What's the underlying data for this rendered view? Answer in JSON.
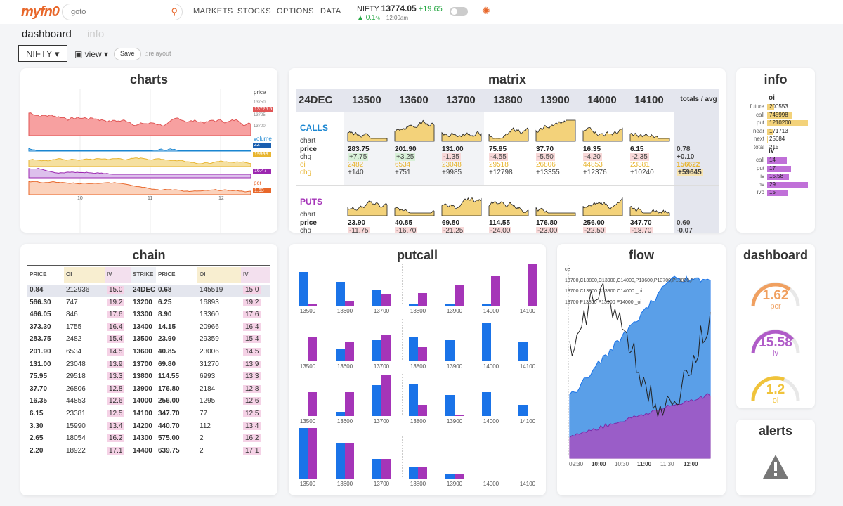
{
  "app": {
    "logo": "myfn0",
    "search_placeholder": "goto",
    "nav": [
      "MARKETS",
      "STOCKS",
      "OPTIONS",
      "DATA"
    ],
    "ticker": {
      "name": "NIFTY",
      "price": "13774.05",
      "chg": "+19.65",
      "pct": "0.1",
      "pct_unit": "%",
      "time": "12:00am"
    }
  },
  "tabs": [
    "dashboard",
    "info"
  ],
  "controls": {
    "symbol": "NIFTY",
    "view": "view",
    "save": "Save",
    "relayout": "relayout"
  },
  "colors": {
    "accent": "#e8672a",
    "calls": "#1a86d1",
    "puts": "#a535b8",
    "blue": "#1a73e8",
    "purple": "#9c27b0",
    "yellow": "#f0c33a"
  },
  "charts": {
    "title": "charts",
    "labels": {
      "price": "price",
      "volume": "volume",
      "pcr": "pcr"
    },
    "yticks": [
      "13750",
      "13726.5",
      "13725",
      "13700"
    ],
    "badges": {
      "vol": "44",
      "oi": "19998",
      "iv": "16.47",
      "pcr": "1.63"
    },
    "xticks": [
      "10",
      "11",
      "12"
    ]
  },
  "matrix": {
    "title": "matrix",
    "expiry": "24DEC",
    "strikes": [
      "13500",
      "13600",
      "13700",
      "13800",
      "13900",
      "14000",
      "14100"
    ],
    "totals": "totals / avg",
    "calls": {
      "label": "CALLS",
      "rows": [
        "chart",
        "price",
        "chg",
        "oi",
        "chg"
      ],
      "price": [
        "283.75",
        "201.90",
        "131.00",
        "75.95",
        "37.70",
        "16.35",
        "6.15"
      ],
      "chg": [
        "+7.75",
        "+3.25",
        "-1.35",
        "-4.55",
        "-5.50",
        "-4.20",
        "-2.35"
      ],
      "oi": [
        "2482",
        "6534",
        "23048",
        "29518",
        "26806",
        "44853",
        "23381"
      ],
      "oichg": [
        "+140",
        "+751",
        "+9985",
        "+12798",
        "+13355",
        "+12376",
        "+10240"
      ],
      "tot": [
        "0.78",
        "+0.10",
        "156622",
        "+59645"
      ]
    },
    "puts": {
      "label": "PUTS",
      "rows": [
        "chart",
        "price",
        "chg"
      ],
      "price": [
        "23.90",
        "40.85",
        "69.80",
        "114.55",
        "176.80",
        "256.00",
        "347.70"
      ],
      "chg": [
        "-11.75",
        "-16.70",
        "-21.25",
        "-24.00",
        "-23.00",
        "-22.50",
        "-18.70"
      ],
      "tot": [
        "0.60",
        "-0.07"
      ]
    }
  },
  "info": {
    "title": "info",
    "oi_label": "oi",
    "oi": [
      {
        "k": "future",
        "v": "200553"
      },
      {
        "k": "call",
        "v": "745998"
      },
      {
        "k": "put",
        "v": "1210200"
      },
      {
        "k": "near",
        "v": "171713"
      },
      {
        "k": "next",
        "v": "25684"
      },
      {
        "k": "total",
        "v": "215"
      }
    ],
    "iv_label": "iv",
    "iv": [
      {
        "k": "call",
        "v": "14"
      },
      {
        "k": "put",
        "v": "17"
      },
      {
        "k": "iv",
        "v": "15.58"
      },
      {
        "k": "hv",
        "v": "29"
      },
      {
        "k": "ivp",
        "v": "15"
      }
    ]
  },
  "chain": {
    "title": "chain",
    "headers": [
      "PRICE",
      "OI",
      "IV",
      "STRIKE",
      "PRICE",
      "OI",
      "IV"
    ],
    "rows": [
      [
        "0.84",
        "212936",
        "15.0",
        "24DEC",
        "0.68",
        "145519",
        "15.0"
      ],
      [
        "566.30",
        "747",
        "19.2",
        "13200",
        "6.25",
        "16893",
        "19.2"
      ],
      [
        "466.05",
        "846",
        "17.6",
        "13300",
        "8.90",
        "13360",
        "17.6"
      ],
      [
        "373.30",
        "1755",
        "16.4",
        "13400",
        "14.15",
        "20966",
        "16.4"
      ],
      [
        "283.75",
        "2482",
        "15.4",
        "13500",
        "23.90",
        "29359",
        "15.4"
      ],
      [
        "201.90",
        "6534",
        "14.5",
        "13600",
        "40.85",
        "23006",
        "14.5"
      ],
      [
        "131.00",
        "23048",
        "13.9",
        "13700",
        "69.80",
        "31270",
        "13.9"
      ],
      [
        "75.95",
        "29518",
        "13.3",
        "13800",
        "114.55",
        "6993",
        "13.3"
      ],
      [
        "37.70",
        "26806",
        "12.8",
        "13900",
        "176.80",
        "2184",
        "12.8"
      ],
      [
        "16.35",
        "44853",
        "12.6",
        "14000",
        "256.00",
        "1295",
        "12.6"
      ],
      [
        "6.15",
        "23381",
        "12.5",
        "14100",
        "347.70",
        "77",
        "12.5"
      ],
      [
        "3.30",
        "15990",
        "13.4",
        "14200",
        "440.70",
        "112",
        "13.4"
      ],
      [
        "2.65",
        "18054",
        "16.2",
        "14300",
        "575.00",
        "2",
        "16.2"
      ],
      [
        "2.20",
        "18922",
        "17.1",
        "14400",
        "639.75",
        "2",
        "17.1"
      ]
    ]
  },
  "putcall": {
    "title": "putcall",
    "strikes": [
      "13500",
      "13600",
      "13700",
      "13800",
      "13900",
      "14000",
      "14100"
    ]
  },
  "flow": {
    "title": "flow",
    "legend": [
      "ce",
      "13700,C13800,C13900,C14000,P13600,P13700,P13800,P",
      "13700 C13800 C13900 C14000 _oi",
      "13700 P13800 P13900 P14000 _oi"
    ],
    "xticks": [
      "09:30",
      "10:00",
      "10:30",
      "11:00",
      "11:30",
      "12:00"
    ]
  },
  "dash": {
    "title": "dashboard",
    "gauges": [
      {
        "value": "1.62",
        "label": "pcr",
        "color": "#f0a060"
      },
      {
        "value": "15.58",
        "label": "iv",
        "color": "#b05cc8"
      },
      {
        "value": "1.2",
        "label": "oi",
        "color": "#f0c33a"
      }
    ]
  },
  "alerts": {
    "title": "alerts"
  },
  "chart_data": [
    {
      "type": "bar",
      "title": "putcall",
      "categories": [
        "13500",
        "13600",
        "13700",
        "13800",
        "13900",
        "14000",
        "14100"
      ],
      "series": []
    },
    {
      "type": "bar",
      "categories": [
        "13500",
        "13600",
        "13700",
        "13800",
        "13900",
        "14000",
        "14100"
      ],
      "series": []
    },
    {
      "type": "bar",
      "categories": [
        "13500",
        "13600",
        "13700",
        "13800",
        "13900",
        "14000",
        "14100"
      ],
      "series": []
    },
    {
      "type": "bar",
      "categories": [
        "13500",
        "13600",
        "13700",
        "13800",
        "13900",
        "14000",
        "14100"
      ],
      "series": []
    }
  ]
}
